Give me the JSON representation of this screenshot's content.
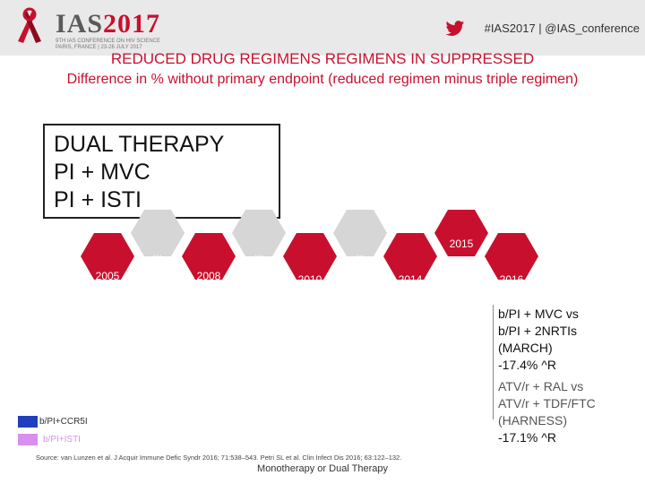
{
  "header": {
    "logo_main": "IAS",
    "logo_year": "2017",
    "logo_sub": "9TH IAS CONFERENCE ON HIV SCIENCE PARIS, FRANCE | 23-26 JULY 2017",
    "hashtag": "#IAS2017 | @IAS_conference"
  },
  "slide": {
    "title": "REDUCED DRUG REGIMENS REGIMENS IN SUPPRESSED",
    "subtitle": "Difference in % without primary endpoint (reduced regimen minus triple regimen)",
    "box_lines": [
      "DUAL THERAPY",
      "PI + MVC",
      "PI + ISTI"
    ]
  },
  "timeline": {
    "years": [
      "2005",
      "2008",
      "2010",
      "2014",
      "2015",
      "2016"
    ],
    "ellipses": [
      "...",
      "...",
      "..."
    ]
  },
  "notes": {
    "march": [
      "b/PI + MVC vs",
      "b/PI + 2NRTIs",
      "(MARCH)",
      "-17.4% ^R"
    ],
    "harness": [
      "ATV/r + RAL vs",
      "ATV/r + TDF/FTC",
      "(HARNESS)",
      "-17.1% ^R"
    ]
  },
  "legend": [
    {
      "label": "b/PI+CCR5I",
      "color": "#1f3fbf"
    },
    {
      "label": "b/PI+ISTI",
      "color": "#d98ef0"
    }
  ],
  "source": "Source: van Lunzen et al. J Acquir Immune Defic Syndr 2016; 71:538–543. Petri SL et al. Clin Infect Dis 2016; 63:122–132.",
  "footer": "Monotherapy or Dual Therapy",
  "colors": {
    "accent": "#c8102e",
    "hex_gray": "#d6d6d6",
    "hex_red": "#c8102e"
  }
}
